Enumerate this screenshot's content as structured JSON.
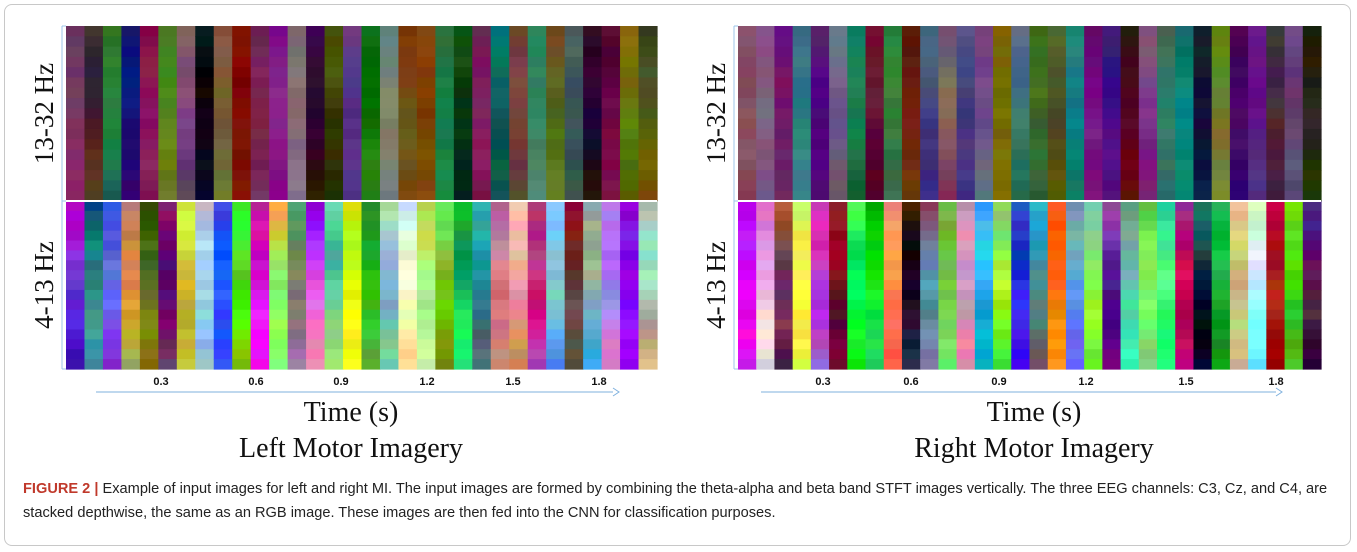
{
  "panels": [
    {
      "band_labels": [
        "13-32 Hz",
        "4-13 Hz"
      ],
      "ticks": [
        "0.3",
        "0.6",
        "0.9",
        "1.2",
        "1.5",
        "1.8"
      ],
      "xlabel": "Time (s)",
      "title": "Left Motor Imagery"
    },
    {
      "band_labels": [
        "13-32 Hz",
        "4-13 Hz"
      ],
      "ticks": [
        "0.3",
        "0.6",
        "0.9",
        "1.2",
        "1.5",
        "1.8"
      ],
      "xlabel": "Time (s)",
      "title": "Right Motor Imagery"
    }
  ],
  "caption": {
    "label": "FIGURE 2 |",
    "text": "Example of input images for left and right MI. The input images are formed by combining the theta-alpha and beta band STFT images vertically. The three EEG channels: C3, Cz, and C4, are stacked depthwise, the same as an RGB image. These images are then fed into the CNN for classification purposes."
  }
}
